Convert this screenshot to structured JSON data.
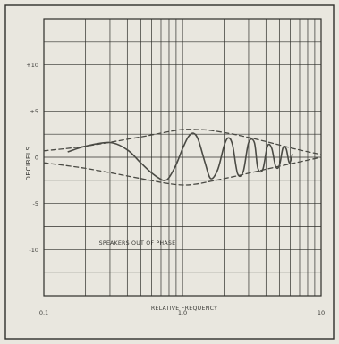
{
  "chart_data": {
    "type": "line",
    "title": "",
    "xlabel": "RELATIVE FREQUENCY",
    "ylabel": "DECIBELS",
    "x_scale": "log",
    "xlim": [
      0.1,
      10
    ],
    "ylim": [
      -15,
      15
    ],
    "x_tick_labels": [
      "0.1",
      "1.0",
      "10"
    ],
    "y_tick_labels": [
      "+10",
      "+5",
      "0",
      "-5",
      "-10"
    ],
    "y_tick_values": [
      10,
      5,
      0,
      -5,
      -10
    ],
    "grid": true,
    "annotations": [
      {
        "text": "SPEAKERS OUT OF PHASE",
        "x": 0.25,
        "y": -9.5
      }
    ],
    "series": [
      {
        "style": "solid",
        "x": [
          0.15,
          0.2,
          0.3,
          0.4,
          0.5,
          0.6,
          0.7,
          0.75,
          0.8,
          0.9,
          1.0,
          1.1,
          1.2,
          1.3,
          1.45,
          1.6,
          1.8,
          2.0,
          2.15,
          2.3,
          2.5,
          2.75,
          3.0,
          3.3,
          3.5,
          3.8,
          4.1,
          4.4,
          4.7,
          5.0,
          5.3,
          5.6,
          5.9,
          6.2
        ],
        "y": [
          0.6,
          1.2,
          1.6,
          0.8,
          -0.6,
          -1.7,
          -2.4,
          -2.5,
          -2.2,
          -0.8,
          0.9,
          2.2,
          2.6,
          1.9,
          -0.5,
          -2.3,
          -1.3,
          1.3,
          2.1,
          1.3,
          -1.8,
          -1.5,
          1.6,
          1.6,
          -1.2,
          -1.3,
          1.2,
          1.0,
          -1.0,
          -0.9,
          1.0,
          0.9,
          -0.6,
          0.3
        ]
      },
      {
        "style": "dashed",
        "name": "",
        "x": [
          0.1,
          0.2,
          0.5,
          0.75,
          1.0,
          1.25,
          1.6,
          2.5,
          4.0,
          6.5,
          10
        ],
        "y": [
          0.7,
          1.2,
          2.2,
          2.7,
          3.0,
          3.0,
          2.9,
          2.4,
          1.7,
          0.9,
          0.3
        ]
      },
      {
        "style": "dashed",
        "name": "",
        "x": [
          0.1,
          0.2,
          0.5,
          0.75,
          1.0,
          1.25,
          1.6,
          2.5,
          4.0,
          6.5,
          10
        ],
        "y": [
          -0.6,
          -1.2,
          -2.3,
          -2.8,
          -3.0,
          -2.9,
          -2.6,
          -2.0,
          -1.3,
          -0.6,
          0
        ]
      }
    ]
  }
}
